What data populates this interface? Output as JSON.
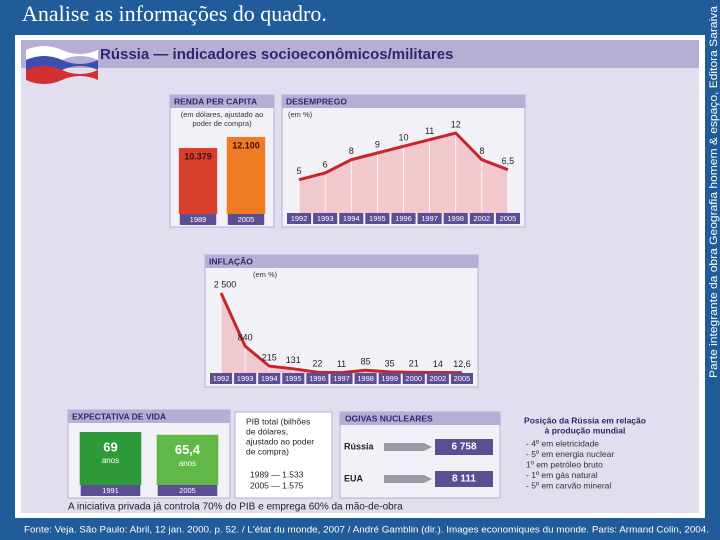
{
  "title": "Analise as informações do quadro.",
  "side_note": "Parte integrante da obra Geografia homem & espaço, Editora Saraiva",
  "footer": "Fonte: Veja. São Paulo: Abril, 12 jan. 2000. p. 52. / L'état du monde, 2007 / André Gamblin (dir.). Images economiques du monde. Paris: Armand Colin, 2004.",
  "infographic": {
    "heading": "Rússia — indicadores socioeconômicos/militares",
    "note": "A iniciativa privada já controla 70% do PIB e emprega 60% da mão-de-obra",
    "pib": {
      "text": [
        "PIB total (bilhões",
        "de dólares,",
        "ajustado ao poder",
        "de compra)"
      ],
      "rows": [
        "1989 — 1.533",
        "2005 — 1.575"
      ]
    },
    "nuclear": {
      "title": "OGIVAS NUCLEARES",
      "rows": [
        {
          "country": "Rússia",
          "value": "6 758"
        },
        {
          "country": "EUA",
          "value": "8 111"
        }
      ]
    },
    "position": {
      "title": [
        "Posição da Rússia em relação",
        "à produção mundial"
      ],
      "items": [
        "- 4º em eletricidade",
        "- 5º em energia nuclear",
        "1º em petróleo bruto",
        "- 1º em gás natural",
        "- 5º em carvão mineral"
      ]
    }
  },
  "chart_data": [
    {
      "type": "bar",
      "title": "RENDA PER CAPITA",
      "subtitle": [
        "(em dólares, ajustado ao",
        "poder de compra)"
      ],
      "categories": [
        "1989",
        "2005"
      ],
      "values": [
        10379,
        12100
      ],
      "value_labels": [
        "10.379",
        "12.100"
      ],
      "colors": [
        "#d9402b",
        "#ef7b22"
      ]
    },
    {
      "type": "line",
      "title": "DESEMPREGO",
      "subtitle": [
        "(em %)"
      ],
      "categories": [
        "1992",
        "1993",
        "1994",
        "1995",
        "1996",
        "1997",
        "1998",
        "2002",
        "2005"
      ],
      "values": [
        5,
        6,
        8,
        9,
        10,
        11,
        12,
        8,
        6.5
      ],
      "value_labels": [
        "5",
        "6",
        "8",
        "9",
        "10",
        "11",
        "12",
        "8",
        "6,5"
      ],
      "color": "#c8242c"
    },
    {
      "type": "line",
      "title": "INFLAÇÃO",
      "subtitle": [
        "(em %)"
      ],
      "categories": [
        "1992",
        "1993",
        "1994",
        "1995",
        "1996",
        "1997",
        "1998",
        "1999",
        "2000",
        "2002",
        "2005"
      ],
      "values": [
        2500,
        840,
        215,
        131,
        22,
        11,
        85,
        35,
        21,
        14,
        12.6
      ],
      "value_labels": [
        "2 500",
        "840",
        "215",
        "131",
        "22",
        "11",
        "85",
        "35",
        "21",
        "14",
        "12,6"
      ],
      "color": "#c8242c"
    },
    {
      "type": "bar",
      "title": "EXPECTATIVA DE VIDA",
      "unit": "anos",
      "categories": [
        "1991",
        "2005"
      ],
      "values": [
        69,
        65.4
      ],
      "value_labels": [
        "69",
        "65,4"
      ],
      "colors": [
        "#2e9a3a",
        "#5fb847"
      ]
    }
  ]
}
